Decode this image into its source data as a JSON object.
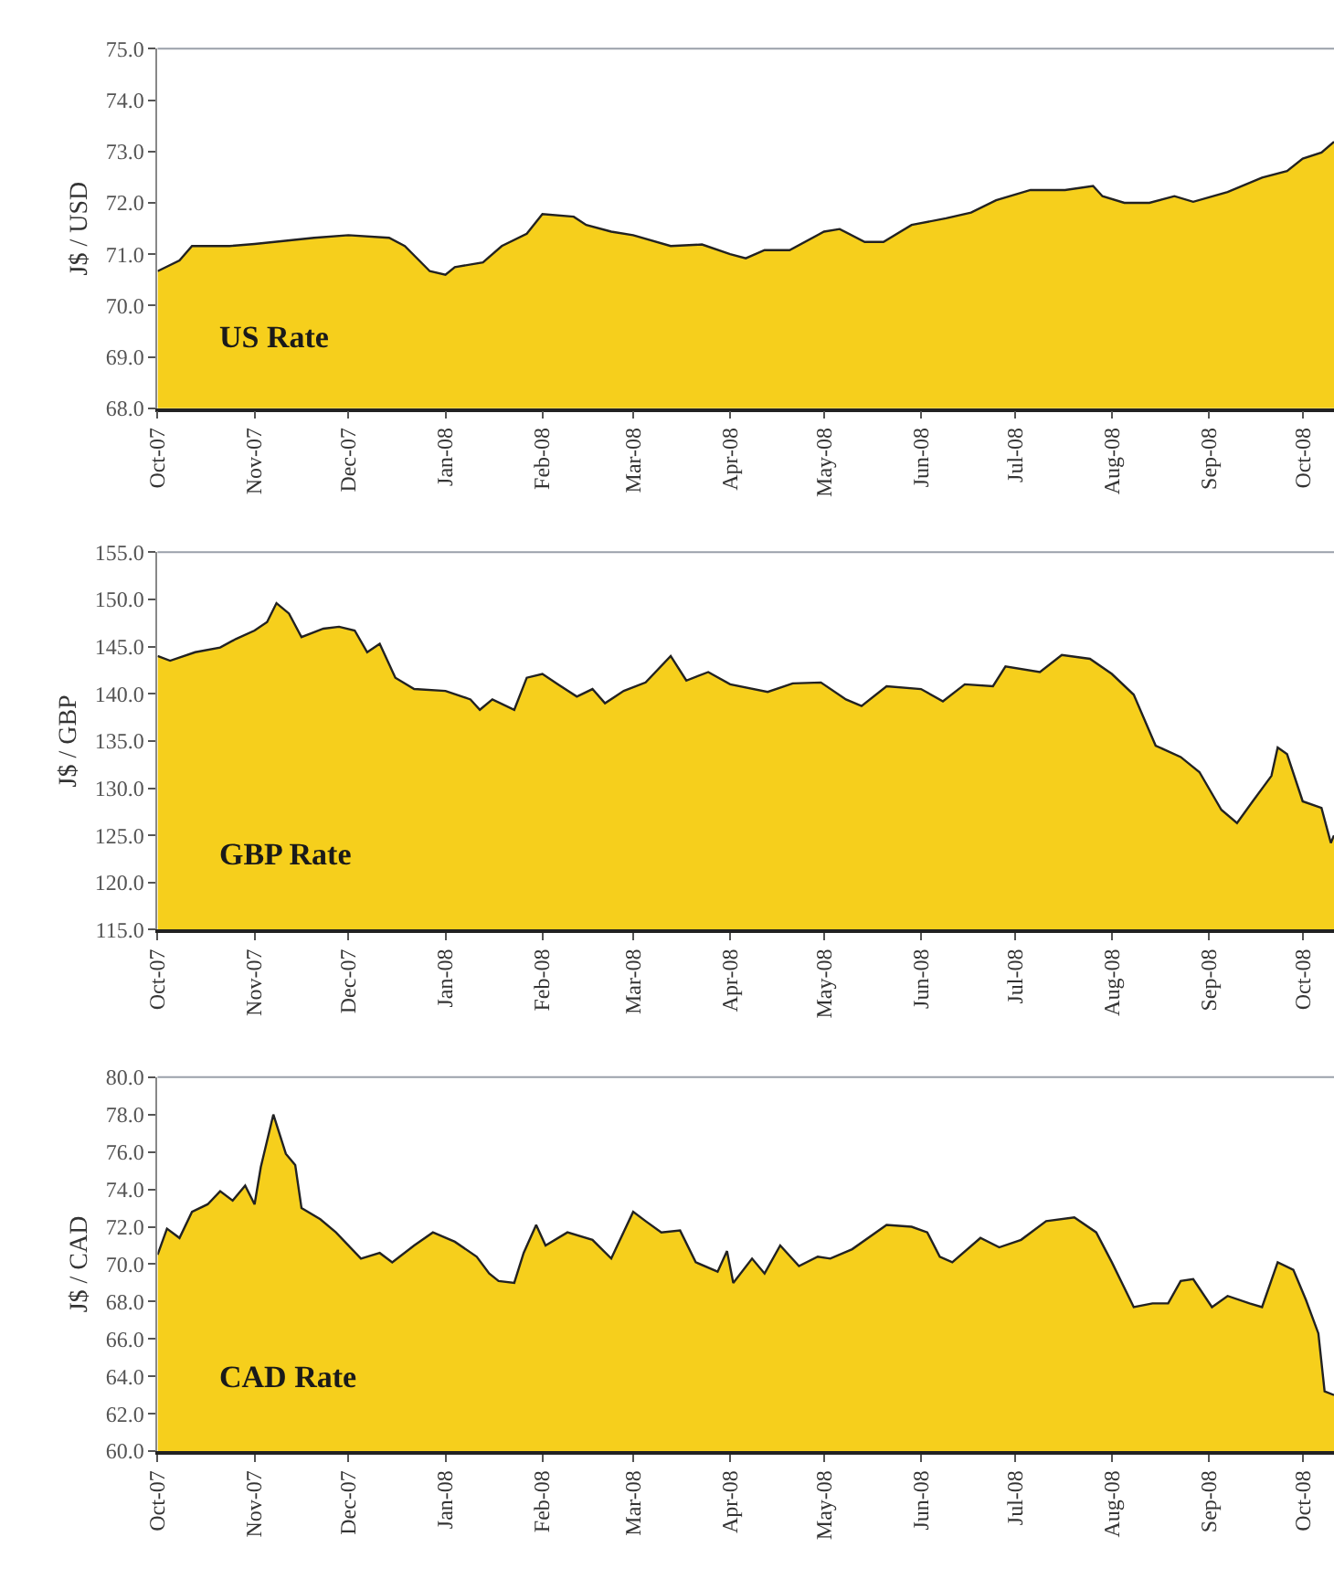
{
  "chart_data": [
    {
      "type": "area",
      "ylabel": "J$ / USD",
      "annotations": [
        "US Rate"
      ],
      "ylim": [
        68,
        75
      ],
      "yticks": [
        {
          "value": 68,
          "label": "68.0"
        },
        {
          "value": 69,
          "label": "69.0"
        },
        {
          "value": 70,
          "label": "70.0"
        },
        {
          "value": 71,
          "label": "71.0"
        },
        {
          "value": 72,
          "label": "72.0"
        },
        {
          "value": 73,
          "label": "73.0"
        },
        {
          "value": 74,
          "label": "74.0"
        },
        {
          "value": 75,
          "label": "75.0"
        }
      ],
      "xlim": [
        "2007-10-01",
        "2008-10-11"
      ],
      "xticks": [
        {
          "value": "2007-10-01",
          "label": "Oct-07"
        },
        {
          "value": "2007-11-01",
          "label": "Nov-07"
        },
        {
          "value": "2007-12-01",
          "label": "Dec-07"
        },
        {
          "value": "2008-01-01",
          "label": "Jan-08"
        },
        {
          "value": "2008-02-01",
          "label": "Feb-08"
        },
        {
          "value": "2008-03-01",
          "label": "Mar-08"
        },
        {
          "value": "2008-04-01",
          "label": "Apr-08"
        },
        {
          "value": "2008-05-01",
          "label": "May-08"
        },
        {
          "value": "2008-06-01",
          "label": "Jun-08"
        },
        {
          "value": "2008-07-01",
          "label": "Jul-08"
        },
        {
          "value": "2008-08-01",
          "label": "Aug-08"
        },
        {
          "value": "2008-09-01",
          "label": "Sep-08"
        },
        {
          "value": "2008-10-01",
          "label": "Oct-08"
        }
      ],
      "x": [
        "2007-10-01",
        "2007-10-08",
        "2007-10-12",
        "2007-10-24",
        "2007-11-01",
        "2007-11-20",
        "2007-12-01",
        "2007-12-14",
        "2007-12-19",
        "2007-12-27",
        "2008-01-01",
        "2008-01-04",
        "2008-01-13",
        "2008-01-19",
        "2008-01-27",
        "2008-02-01",
        "2008-02-11",
        "2008-02-15",
        "2008-02-23",
        "2008-03-01",
        "2008-03-13",
        "2008-03-23",
        "2008-04-01",
        "2008-04-06",
        "2008-04-12",
        "2008-04-20",
        "2008-05-01",
        "2008-05-06",
        "2008-05-14",
        "2008-05-20",
        "2008-05-29",
        "2008-06-09",
        "2008-06-17",
        "2008-06-25",
        "2008-07-06",
        "2008-07-17",
        "2008-07-26",
        "2008-07-29",
        "2008-08-05",
        "2008-08-13",
        "2008-08-21",
        "2008-08-27",
        "2008-09-07",
        "2008-09-18",
        "2008-09-26",
        "2008-10-01",
        "2008-10-07",
        "2008-10-11"
      ],
      "series": [
        {
          "color": "#f6cf1c",
          "values": [
            70.67,
            70.88,
            71.16,
            71.16,
            71.2,
            71.32,
            71.37,
            71.32,
            71.16,
            70.67,
            70.6,
            70.75,
            70.84,
            71.16,
            71.4,
            71.78,
            71.73,
            71.57,
            71.44,
            71.37,
            71.16,
            71.19,
            71.0,
            70.92,
            71.08,
            71.08,
            71.44,
            71.49,
            71.24,
            71.24,
            71.57,
            71.7,
            71.81,
            72.05,
            72.25,
            72.25,
            72.33,
            72.13,
            72.0,
            72.0,
            72.13,
            72.02,
            72.21,
            72.49,
            72.62,
            72.86,
            72.98,
            73.19
          ]
        }
      ]
    },
    {
      "type": "area",
      "ylabel": "J$ / GBP",
      "annotations": [
        "GBP Rate"
      ],
      "ylim": [
        115,
        155
      ],
      "yticks": [
        {
          "value": 115,
          "label": "115.0"
        },
        {
          "value": 120,
          "label": "120.0"
        },
        {
          "value": 125,
          "label": "125.0"
        },
        {
          "value": 130,
          "label": "130.0"
        },
        {
          "value": 135,
          "label": "135.0"
        },
        {
          "value": 140,
          "label": "140.0"
        },
        {
          "value": 145,
          "label": "145.0"
        },
        {
          "value": 150,
          "label": "150.0"
        },
        {
          "value": 155,
          "label": "155.0"
        }
      ],
      "xlim": [
        "2007-10-01",
        "2008-10-11"
      ],
      "xticks": [
        {
          "value": "2007-10-01",
          "label": "Oct-07"
        },
        {
          "value": "2007-11-01",
          "label": "Nov-07"
        },
        {
          "value": "2007-12-01",
          "label": "Dec-07"
        },
        {
          "value": "2008-01-01",
          "label": "Jan-08"
        },
        {
          "value": "2008-02-01",
          "label": "Feb-08"
        },
        {
          "value": "2008-03-01",
          "label": "Mar-08"
        },
        {
          "value": "2008-04-01",
          "label": "Apr-08"
        },
        {
          "value": "2008-05-01",
          "label": "May-08"
        },
        {
          "value": "2008-06-01",
          "label": "Jun-08"
        },
        {
          "value": "2008-07-01",
          "label": "Jul-08"
        },
        {
          "value": "2008-08-01",
          "label": "Aug-08"
        },
        {
          "value": "2008-09-01",
          "label": "Sep-08"
        },
        {
          "value": "2008-10-01",
          "label": "Oct-08"
        }
      ],
      "x": [
        "2007-10-01",
        "2007-10-05",
        "2007-10-13",
        "2007-10-21",
        "2007-10-26",
        "2007-11-01",
        "2007-11-05",
        "2007-11-08",
        "2007-11-12",
        "2007-11-16",
        "2007-11-23",
        "2007-11-28",
        "2007-12-03",
        "2007-12-07",
        "2007-12-11",
        "2007-12-16",
        "2007-12-22",
        "2008-01-01",
        "2008-01-09",
        "2008-01-12",
        "2008-01-16",
        "2008-01-23",
        "2008-01-27",
        "2008-02-01",
        "2008-02-06",
        "2008-02-12",
        "2008-02-17",
        "2008-02-21",
        "2008-02-27",
        "2008-03-05",
        "2008-03-13",
        "2008-03-18",
        "2008-03-25",
        "2008-04-01",
        "2008-04-13",
        "2008-04-21",
        "2008-04-30",
        "2008-05-08",
        "2008-05-13",
        "2008-05-21",
        "2008-06-01",
        "2008-06-08",
        "2008-06-15",
        "2008-06-24",
        "2008-06-28",
        "2008-07-09",
        "2008-07-16",
        "2008-07-25",
        "2008-08-01",
        "2008-08-08",
        "2008-08-15",
        "2008-08-23",
        "2008-08-29",
        "2008-09-05",
        "2008-09-10",
        "2008-09-15",
        "2008-09-21",
        "2008-09-23",
        "2008-09-26",
        "2008-10-01",
        "2008-10-07",
        "2008-10-10",
        "2008-10-11"
      ],
      "series": [
        {
          "color": "#f6cf1c",
          "values": [
            144.0,
            143.5,
            144.4,
            144.9,
            145.8,
            146.7,
            147.6,
            149.6,
            148.5,
            146.0,
            146.9,
            147.1,
            146.7,
            144.4,
            145.3,
            141.7,
            140.5,
            140.3,
            139.4,
            138.3,
            139.4,
            138.3,
            141.7,
            142.1,
            141.0,
            139.7,
            140.5,
            139.0,
            140.3,
            141.2,
            144.0,
            141.4,
            142.3,
            141.0,
            140.2,
            141.1,
            141.2,
            139.4,
            138.7,
            140.8,
            140.5,
            139.2,
            141.0,
            140.8,
            142.9,
            142.3,
            144.1,
            143.7,
            142.1,
            139.9,
            134.5,
            133.3,
            131.7,
            127.7,
            126.3,
            128.6,
            131.3,
            134.3,
            133.6,
            128.6,
            127.9,
            124.2,
            125.0
          ]
        }
      ]
    },
    {
      "type": "area",
      "ylabel": "J$ / CAD",
      "annotations": [
        "CAD Rate"
      ],
      "ylim": [
        60,
        80
      ],
      "yticks": [
        {
          "value": 60,
          "label": "60.0"
        },
        {
          "value": 62,
          "label": "62.0"
        },
        {
          "value": 64,
          "label": "64.0"
        },
        {
          "value": 66,
          "label": "66.0"
        },
        {
          "value": 68,
          "label": "68.0"
        },
        {
          "value": 70,
          "label": "70.0"
        },
        {
          "value": 72,
          "label": "72.0"
        },
        {
          "value": 74,
          "label": "74.0"
        },
        {
          "value": 76,
          "label": "76.0"
        },
        {
          "value": 78,
          "label": "78.0"
        },
        {
          "value": 80,
          "label": "80.0"
        }
      ],
      "xlim": [
        "2007-10-01",
        "2008-10-11"
      ],
      "xticks": [
        {
          "value": "2007-10-01",
          "label": "Oct-07"
        },
        {
          "value": "2007-11-01",
          "label": "Nov-07"
        },
        {
          "value": "2007-12-01",
          "label": "Dec-07"
        },
        {
          "value": "2008-01-01",
          "label": "Jan-08"
        },
        {
          "value": "2008-02-01",
          "label": "Feb-08"
        },
        {
          "value": "2008-03-01",
          "label": "Mar-08"
        },
        {
          "value": "2008-04-01",
          "label": "Apr-08"
        },
        {
          "value": "2008-05-01",
          "label": "May-08"
        },
        {
          "value": "2008-06-01",
          "label": "Jun-08"
        },
        {
          "value": "2008-07-01",
          "label": "Jul-08"
        },
        {
          "value": "2008-08-01",
          "label": "Aug-08"
        },
        {
          "value": "2008-09-01",
          "label": "Sep-08"
        },
        {
          "value": "2008-10-01",
          "label": "Oct-08"
        }
      ],
      "x": [
        "2007-10-01",
        "2007-10-04",
        "2007-10-08",
        "2007-10-12",
        "2007-10-17",
        "2007-10-21",
        "2007-10-25",
        "2007-10-29",
        "2007-11-01",
        "2007-11-03",
        "2007-11-07",
        "2007-11-11",
        "2007-11-14",
        "2007-11-16",
        "2007-11-22",
        "2007-11-27",
        "2007-12-05",
        "2007-12-11",
        "2007-12-15",
        "2007-12-22",
        "2007-12-28",
        "2008-01-04",
        "2008-01-11",
        "2008-01-15",
        "2008-01-18",
        "2008-01-23",
        "2008-01-26",
        "2008-01-30",
        "2008-02-02",
        "2008-02-09",
        "2008-02-17",
        "2008-02-23",
        "2008-03-01",
        "2008-03-05",
        "2008-03-10",
        "2008-03-16",
        "2008-03-21",
        "2008-03-28",
        "2008-03-31",
        "2008-04-02",
        "2008-04-08",
        "2008-04-12",
        "2008-04-17",
        "2008-04-23",
        "2008-04-29",
        "2008-05-03",
        "2008-05-10",
        "2008-05-21",
        "2008-05-29",
        "2008-06-03",
        "2008-06-07",
        "2008-06-11",
        "2008-06-20",
        "2008-06-26",
        "2008-07-03",
        "2008-07-11",
        "2008-07-20",
        "2008-07-27",
        "2008-08-01",
        "2008-08-08",
        "2008-08-14",
        "2008-08-19",
        "2008-08-23",
        "2008-08-27",
        "2008-09-02",
        "2008-09-07",
        "2008-09-14",
        "2008-09-18",
        "2008-09-23",
        "2008-09-28",
        "2008-10-02",
        "2008-10-06",
        "2008-10-08",
        "2008-10-11"
      ],
      "series": [
        {
          "color": "#f6cf1c",
          "values": [
            70.5,
            71.9,
            71.4,
            72.8,
            73.2,
            73.9,
            73.4,
            74.2,
            73.2,
            75.2,
            78.0,
            75.9,
            75.3,
            73.0,
            72.4,
            71.7,
            70.3,
            70.6,
            70.1,
            71.0,
            71.7,
            71.2,
            70.4,
            69.5,
            69.1,
            69.0,
            70.6,
            72.1,
            71.0,
            71.7,
            71.3,
            70.3,
            72.8,
            72.3,
            71.7,
            71.8,
            70.1,
            69.6,
            70.7,
            69.0,
            70.3,
            69.5,
            71.0,
            69.9,
            70.4,
            70.3,
            70.8,
            72.1,
            72.0,
            71.7,
            70.4,
            70.1,
            71.4,
            70.9,
            71.3,
            72.3,
            72.5,
            71.7,
            70.1,
            67.7,
            67.9,
            67.9,
            69.1,
            69.2,
            67.7,
            68.3,
            67.9,
            67.7,
            70.1,
            69.7,
            68.1,
            66.3,
            63.2,
            63.0
          ]
        }
      ]
    }
  ]
}
